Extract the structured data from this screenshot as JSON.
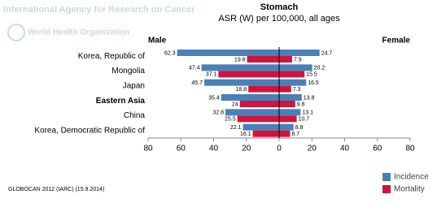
{
  "header": {
    "agency": "International Agency for Research on Cancer",
    "organization": "World Health Organization"
  },
  "footer": "GLOBOCAN 2012 (IARC) (15.9.2014)",
  "chart_data": {
    "type": "bar",
    "orientation": "horizontal",
    "title": "Stomach",
    "subtitle": "ASR (W) per 100,000, all ages",
    "categories": [
      "Korea, Republic of",
      "Mongolia",
      "Japan",
      "Eastern Asia",
      "China",
      "Korea, Democratic Republic of"
    ],
    "emphasized_category": 3,
    "panels": [
      {
        "label": "Male",
        "xlim": [
          80,
          0
        ],
        "xticks": [
          80,
          60,
          40,
          20,
          0
        ],
        "series": [
          {
            "name": "Incidence",
            "color": "#4a80b8",
            "values": [
              62.3,
              47.4,
              45.7,
              35.4,
              32.8,
              22.1
            ]
          },
          {
            "name": "Mortality",
            "color": "#d0143c",
            "values": [
              19.6,
              37.1,
              18.8,
              24,
              25.5,
              16.1
            ]
          }
        ]
      },
      {
        "label": "Female",
        "xlim": [
          0,
          80
        ],
        "xticks": [
          20,
          40,
          60,
          80
        ],
        "series": [
          {
            "name": "Incidence",
            "color": "#4a80b8",
            "values": [
              24.7,
              20.2,
              16.5,
              13.8,
              13.1,
              8.8
            ]
          },
          {
            "name": "Mortality",
            "color": "#d0143c",
            "values": [
              7.9,
              15.5,
              7.3,
              9.8,
              10.7,
              6.7
            ]
          }
        ]
      }
    ]
  }
}
